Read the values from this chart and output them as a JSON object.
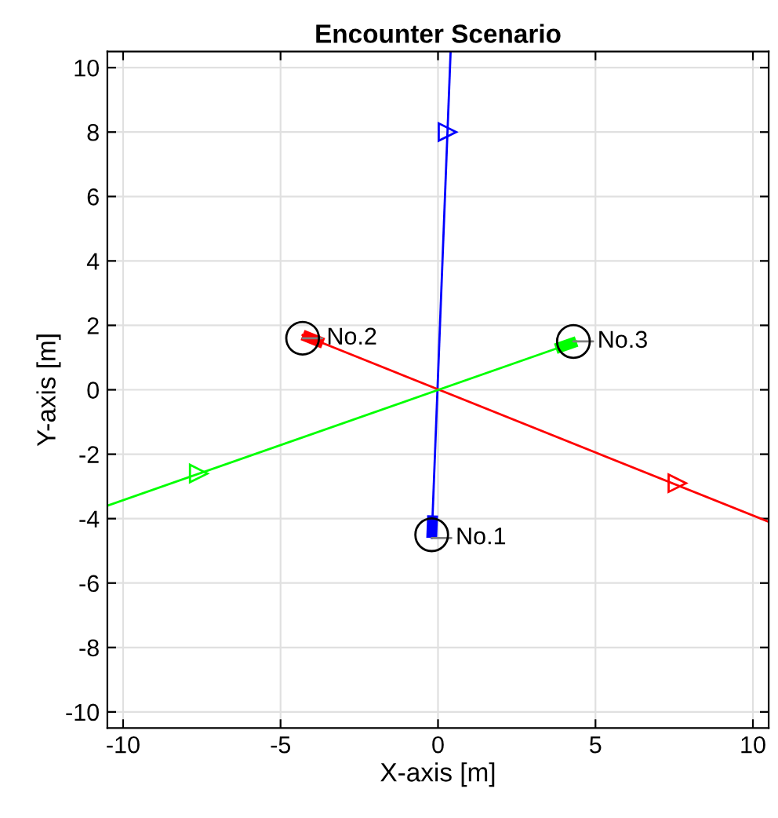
{
  "chart_data": {
    "type": "line",
    "title": "Encounter Scenario",
    "xlabel": "X-axis [m]",
    "ylabel": "Y-axis [m]",
    "xlim": [
      -10.5,
      10.5
    ],
    "ylim": [
      -10.5,
      10.5
    ],
    "xticks": [
      -10,
      -5,
      0,
      5,
      10
    ],
    "yticks": [
      -10,
      -8,
      -6,
      -4,
      -2,
      0,
      2,
      4,
      6,
      8,
      10
    ],
    "grid": true,
    "legend": false,
    "series": [
      {
        "color": "#0000ff",
        "x": [
          -0.2,
          0.4
        ],
        "values": [
          -4.6,
          10.5
        ]
      },
      {
        "color": "#ff0000",
        "x": [
          -4.3,
          10.5
        ],
        "values": [
          1.7,
          -4.1
        ]
      },
      {
        "color": "#00ff00",
        "x": [
          4.4,
          -10.5
        ],
        "values": [
          1.5,
          -3.6
        ]
      },
      {
        "type": "scatter",
        "marker": "triangle",
        "color": "#0000ff",
        "x": [
          0.3
        ],
        "values": [
          8.0
        ]
      },
      {
        "type": "scatter",
        "marker": "triangle",
        "color": "#ff0000",
        "x": [
          7.6
        ],
        "values": [
          -2.9
        ]
      },
      {
        "type": "scatter",
        "marker": "triangle",
        "color": "#00ff00",
        "x": [
          -7.6
        ],
        "values": [
          -2.6
        ]
      },
      {
        "type": "scatter",
        "marker": "circle",
        "color": "#000000",
        "x": [
          -0.2,
          -4.3,
          4.3
        ],
        "values": [
          -4.5,
          1.6,
          1.5
        ]
      }
    ],
    "annotations": [
      {
        "text": "No.1",
        "x": -0.2,
        "y": -4.6
      },
      {
        "text": "No.2",
        "x": -4.3,
        "y": 1.6
      },
      {
        "text": "No.3",
        "x": 4.3,
        "y": 1.5
      }
    ]
  }
}
